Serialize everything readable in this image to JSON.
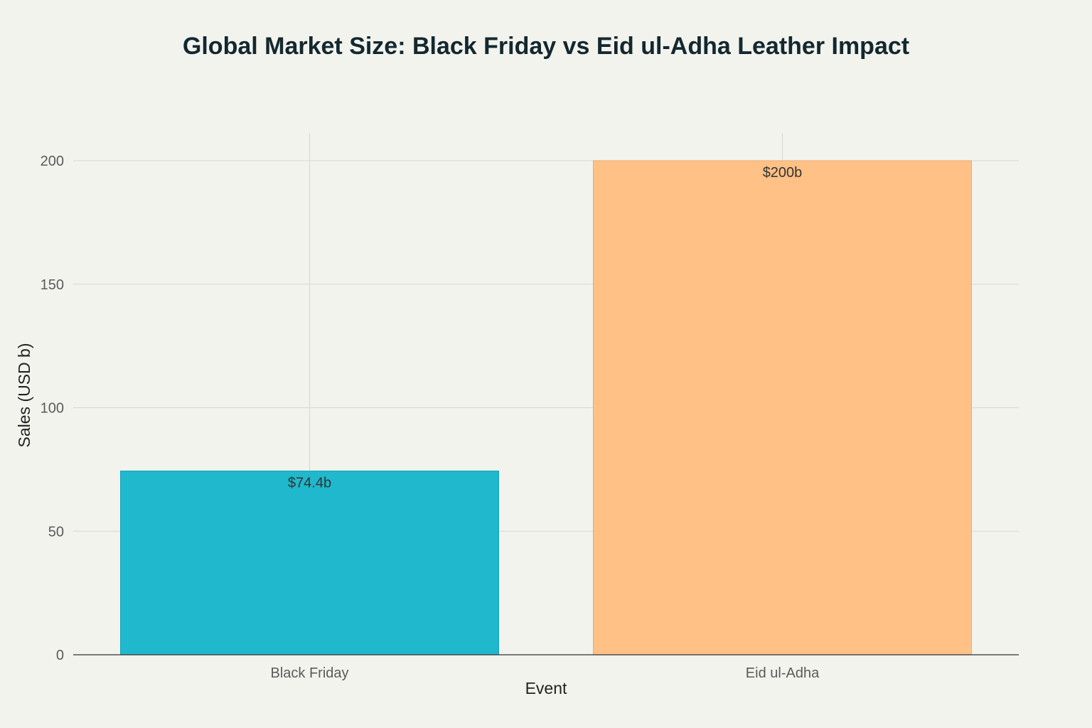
{
  "chart_data": {
    "type": "bar",
    "title": "Global Market Size: Black Friday vs Eid ul-Adha Leather Impact",
    "xlabel": "Event",
    "ylabel": "Sales (USD b)",
    "categories": [
      "Black Friday",
      "Eid ul-Adha"
    ],
    "values": [
      74.4,
      200
    ],
    "data_labels": [
      "$74.4b",
      "$200b"
    ],
    "colors": [
      "#1fb8cd",
      "#ffc185"
    ],
    "ylim": [
      0,
      210
    ],
    "yticks": [
      0,
      50,
      100,
      150,
      200
    ],
    "grid": true,
    "legend": false
  }
}
